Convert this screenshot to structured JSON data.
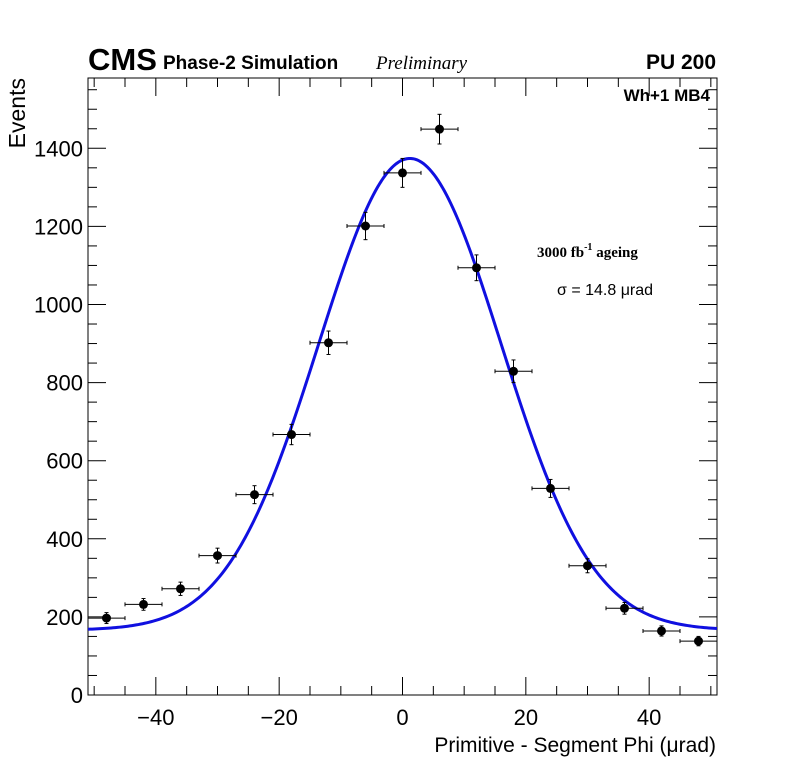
{
  "header": {
    "experiment": "CMS",
    "subtitle": "Phase-2 Simulation",
    "status": "Preliminary",
    "pileup": "PU 200"
  },
  "chart_data": {
    "type": "scatter",
    "title": "",
    "xlabel": "Primitive - Segment Phi (μrad)",
    "ylabel": "Events",
    "xlim": [
      -51,
      51
    ],
    "ylim": [
      0,
      1580
    ],
    "xticks": [
      -40,
      -20,
      0,
      20,
      40
    ],
    "yticks": [
      0,
      200,
      400,
      600,
      800,
      1000,
      1200,
      1400
    ],
    "xtick_labels": [
      "−40",
      "−20",
      "0",
      "20",
      "40"
    ],
    "ytick_labels": [
      "0",
      "200",
      "400",
      "600",
      "800",
      "1000",
      "1200",
      "1400"
    ],
    "chamber_label": "Wh+1 MB4",
    "ageing_label_base": "3000 fb",
    "ageing_label_exp": "-1",
    "ageing_label_tail": " ageing",
    "sigma_label": "σ = 14.8 μrad",
    "points": {
      "x": [
        -48,
        -42,
        -36,
        -30,
        -24,
        -18,
        -12,
        -6,
        0,
        6,
        12,
        18,
        24,
        30,
        36,
        42,
        48
      ],
      "y": [
        197,
        232,
        272,
        357,
        513,
        667,
        902,
        1201,
        1337,
        1449,
        1094,
        829,
        529,
        331,
        222,
        164,
        138
      ],
      "xerr": [
        3,
        3,
        3,
        3,
        3,
        3,
        3,
        3,
        3,
        3,
        3,
        3,
        3,
        3,
        3,
        3,
        3
      ],
      "yerr": [
        14,
        15,
        17,
        19,
        23,
        26,
        30,
        35,
        37,
        38,
        33,
        29,
        23,
        18,
        15,
        13,
        12
      ]
    },
    "fit": {
      "model": "gaussian_plus_constant",
      "amplitude": 1208,
      "mean": 1.2,
      "sigma": 14.8,
      "constant": 166,
      "color": "#1010e0"
    }
  }
}
